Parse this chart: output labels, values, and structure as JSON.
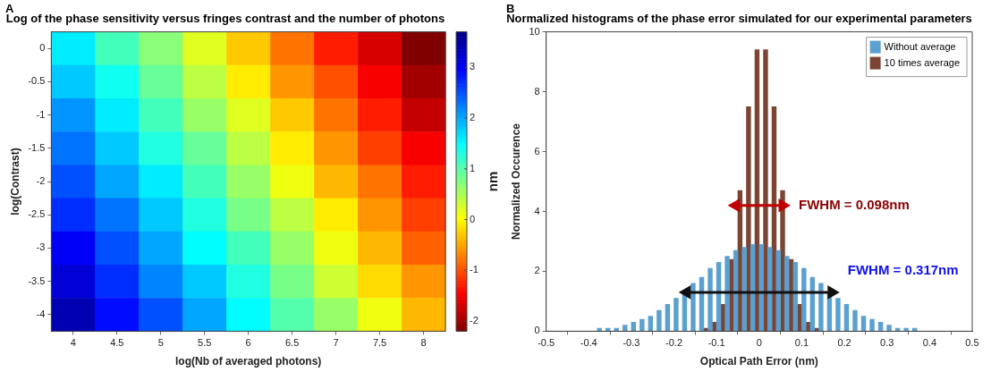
{
  "chart_data": [
    {
      "type": "heatmap",
      "title": "Log of the phase sensitivity versus fringes contrast and the number of photons",
      "xlabel": "log(Nb of averaged photons)",
      "ylabel": "log(Contrast)",
      "clabel": "nm",
      "annotations": [
        "A"
      ],
      "categories": [
        "4",
        "4.5",
        "5",
        "5.5",
        "6",
        "6.5",
        "7",
        "7.5",
        "8"
      ],
      "y_categories": [
        "0",
        "-0.5",
        "-1",
        "-1.5",
        "-2",
        "-2.5",
        "-3",
        "-3.5",
        "-4"
      ],
      "clim": [
        -2.2,
        3.7
      ],
      "cticks": [
        -2,
        -1,
        0,
        1,
        2,
        3
      ],
      "cells": [
        [
          1.6,
          1.1,
          0.7,
          0.2,
          -0.3,
          -0.8,
          -1.3,
          -1.7,
          -2.2
        ],
        [
          1.8,
          1.4,
          0.9,
          0.4,
          -0.1,
          -0.6,
          -1.0,
          -1.5,
          -2.0
        ],
        [
          2.1,
          1.6,
          1.1,
          0.6,
          0.2,
          -0.3,
          -0.8,
          -1.3,
          -1.8
        ],
        [
          2.3,
          1.8,
          1.3,
          0.9,
          0.4,
          -0.1,
          -0.6,
          -1.1,
          -1.5
        ],
        [
          2.5,
          2.0,
          1.6,
          1.1,
          0.6,
          0.1,
          -0.4,
          -0.8,
          -1.3
        ],
        [
          2.7,
          2.3,
          1.8,
          1.3,
          0.8,
          0.4,
          -0.1,
          -0.6,
          -1.1
        ],
        [
          3.0,
          2.5,
          2.0,
          1.5,
          1.1,
          0.6,
          0.1,
          -0.4,
          -0.9
        ],
        [
          3.2,
          2.7,
          2.2,
          1.8,
          1.3,
          0.8,
          0.3,
          -0.2,
          -0.6
        ],
        [
          3.4,
          2.9,
          2.5,
          2.0,
          1.5,
          1.0,
          0.6,
          0.1,
          -0.4
        ]
      ]
    },
    {
      "type": "histogram",
      "title": "Normalized histograms of the phase error simulated for our experimental parameters",
      "xlabel": "Optical Path Error (nm)",
      "ylabel": "Normalized Occurence",
      "annotations": [
        "B",
        "FWHM = 0.098nm",
        "FWHM = 0.317nm"
      ],
      "legend": "top right",
      "bins": [
        -0.5,
        -0.48,
        -0.46,
        -0.44,
        -0.42,
        -0.4,
        -0.38,
        -0.36,
        -0.34,
        -0.32,
        -0.3,
        -0.28,
        -0.26,
        -0.24,
        -0.22,
        -0.2,
        -0.18,
        -0.16,
        -0.14,
        -0.12,
        -0.1,
        -0.08,
        -0.06,
        -0.04,
        -0.02,
        0,
        0.02,
        0.04,
        0.06,
        0.08,
        0.1,
        0.12,
        0.14,
        0.16,
        0.18,
        0.2,
        0.22,
        0.24,
        0.26,
        0.28,
        0.3,
        0.32,
        0.34,
        0.36,
        0.38,
        0.4,
        0.42,
        0.44,
        0.46,
        0.48,
        0.5
      ],
      "xlim": [
        -0.5,
        0.5
      ],
      "xticks": [
        -0.5,
        -0.4,
        -0.3,
        -0.2,
        -0.1,
        0,
        0.1,
        0.2,
        0.3,
        0.4,
        0.5
      ],
      "ylim": [
        0,
        10
      ],
      "yticks": [
        0,
        2,
        4,
        6,
        8,
        10
      ],
      "series": [
        {
          "name": "Without average",
          "color": "#5aa0d0",
          "values": [
            0.0,
            0.0,
            0.0,
            0.0,
            0.0,
            0.0,
            0.1,
            0.1,
            0.1,
            0.2,
            0.3,
            0.4,
            0.5,
            0.7,
            0.9,
            1.1,
            1.3,
            1.6,
            1.8,
            2.1,
            2.3,
            2.5,
            2.7,
            2.8,
            2.9,
            2.9,
            2.8,
            2.7,
            2.5,
            2.3,
            2.1,
            1.8,
            1.6,
            1.3,
            1.1,
            0.9,
            0.7,
            0.5,
            0.4,
            0.3,
            0.2,
            0.1,
            0.1,
            0.1,
            0.0,
            0.0,
            0.0,
            0.0,
            0.0,
            0.0
          ]
        },
        {
          "name": "10 times average",
          "color": "#7b4433",
          "values": [
            0,
            0,
            0,
            0,
            0,
            0,
            0,
            0,
            0,
            0,
            0,
            0,
            0,
            0,
            0,
            0,
            0,
            0,
            0.1,
            0.3,
            0.9,
            2.4,
            4.7,
            7.5,
            9.4,
            9.4,
            7.5,
            4.7,
            2.4,
            0.9,
            0.3,
            0.1,
            0,
            0,
            0,
            0,
            0,
            0,
            0,
            0,
            0,
            0,
            0,
            0,
            0,
            0,
            0,
            0,
            0,
            0
          ]
        },
        {
          "type": "line",
          "color": "#c00000",
          "marker": "triangle",
          "x": [
            -0.055,
            0.055
          ],
          "values": [
            4.2,
            4.2
          ]
        },
        {
          "type": "line",
          "color": "#111111",
          "marker": "triangle",
          "x": [
            -0.17,
            0.17
          ],
          "values": [
            1.3,
            1.3
          ]
        }
      ]
    }
  ]
}
